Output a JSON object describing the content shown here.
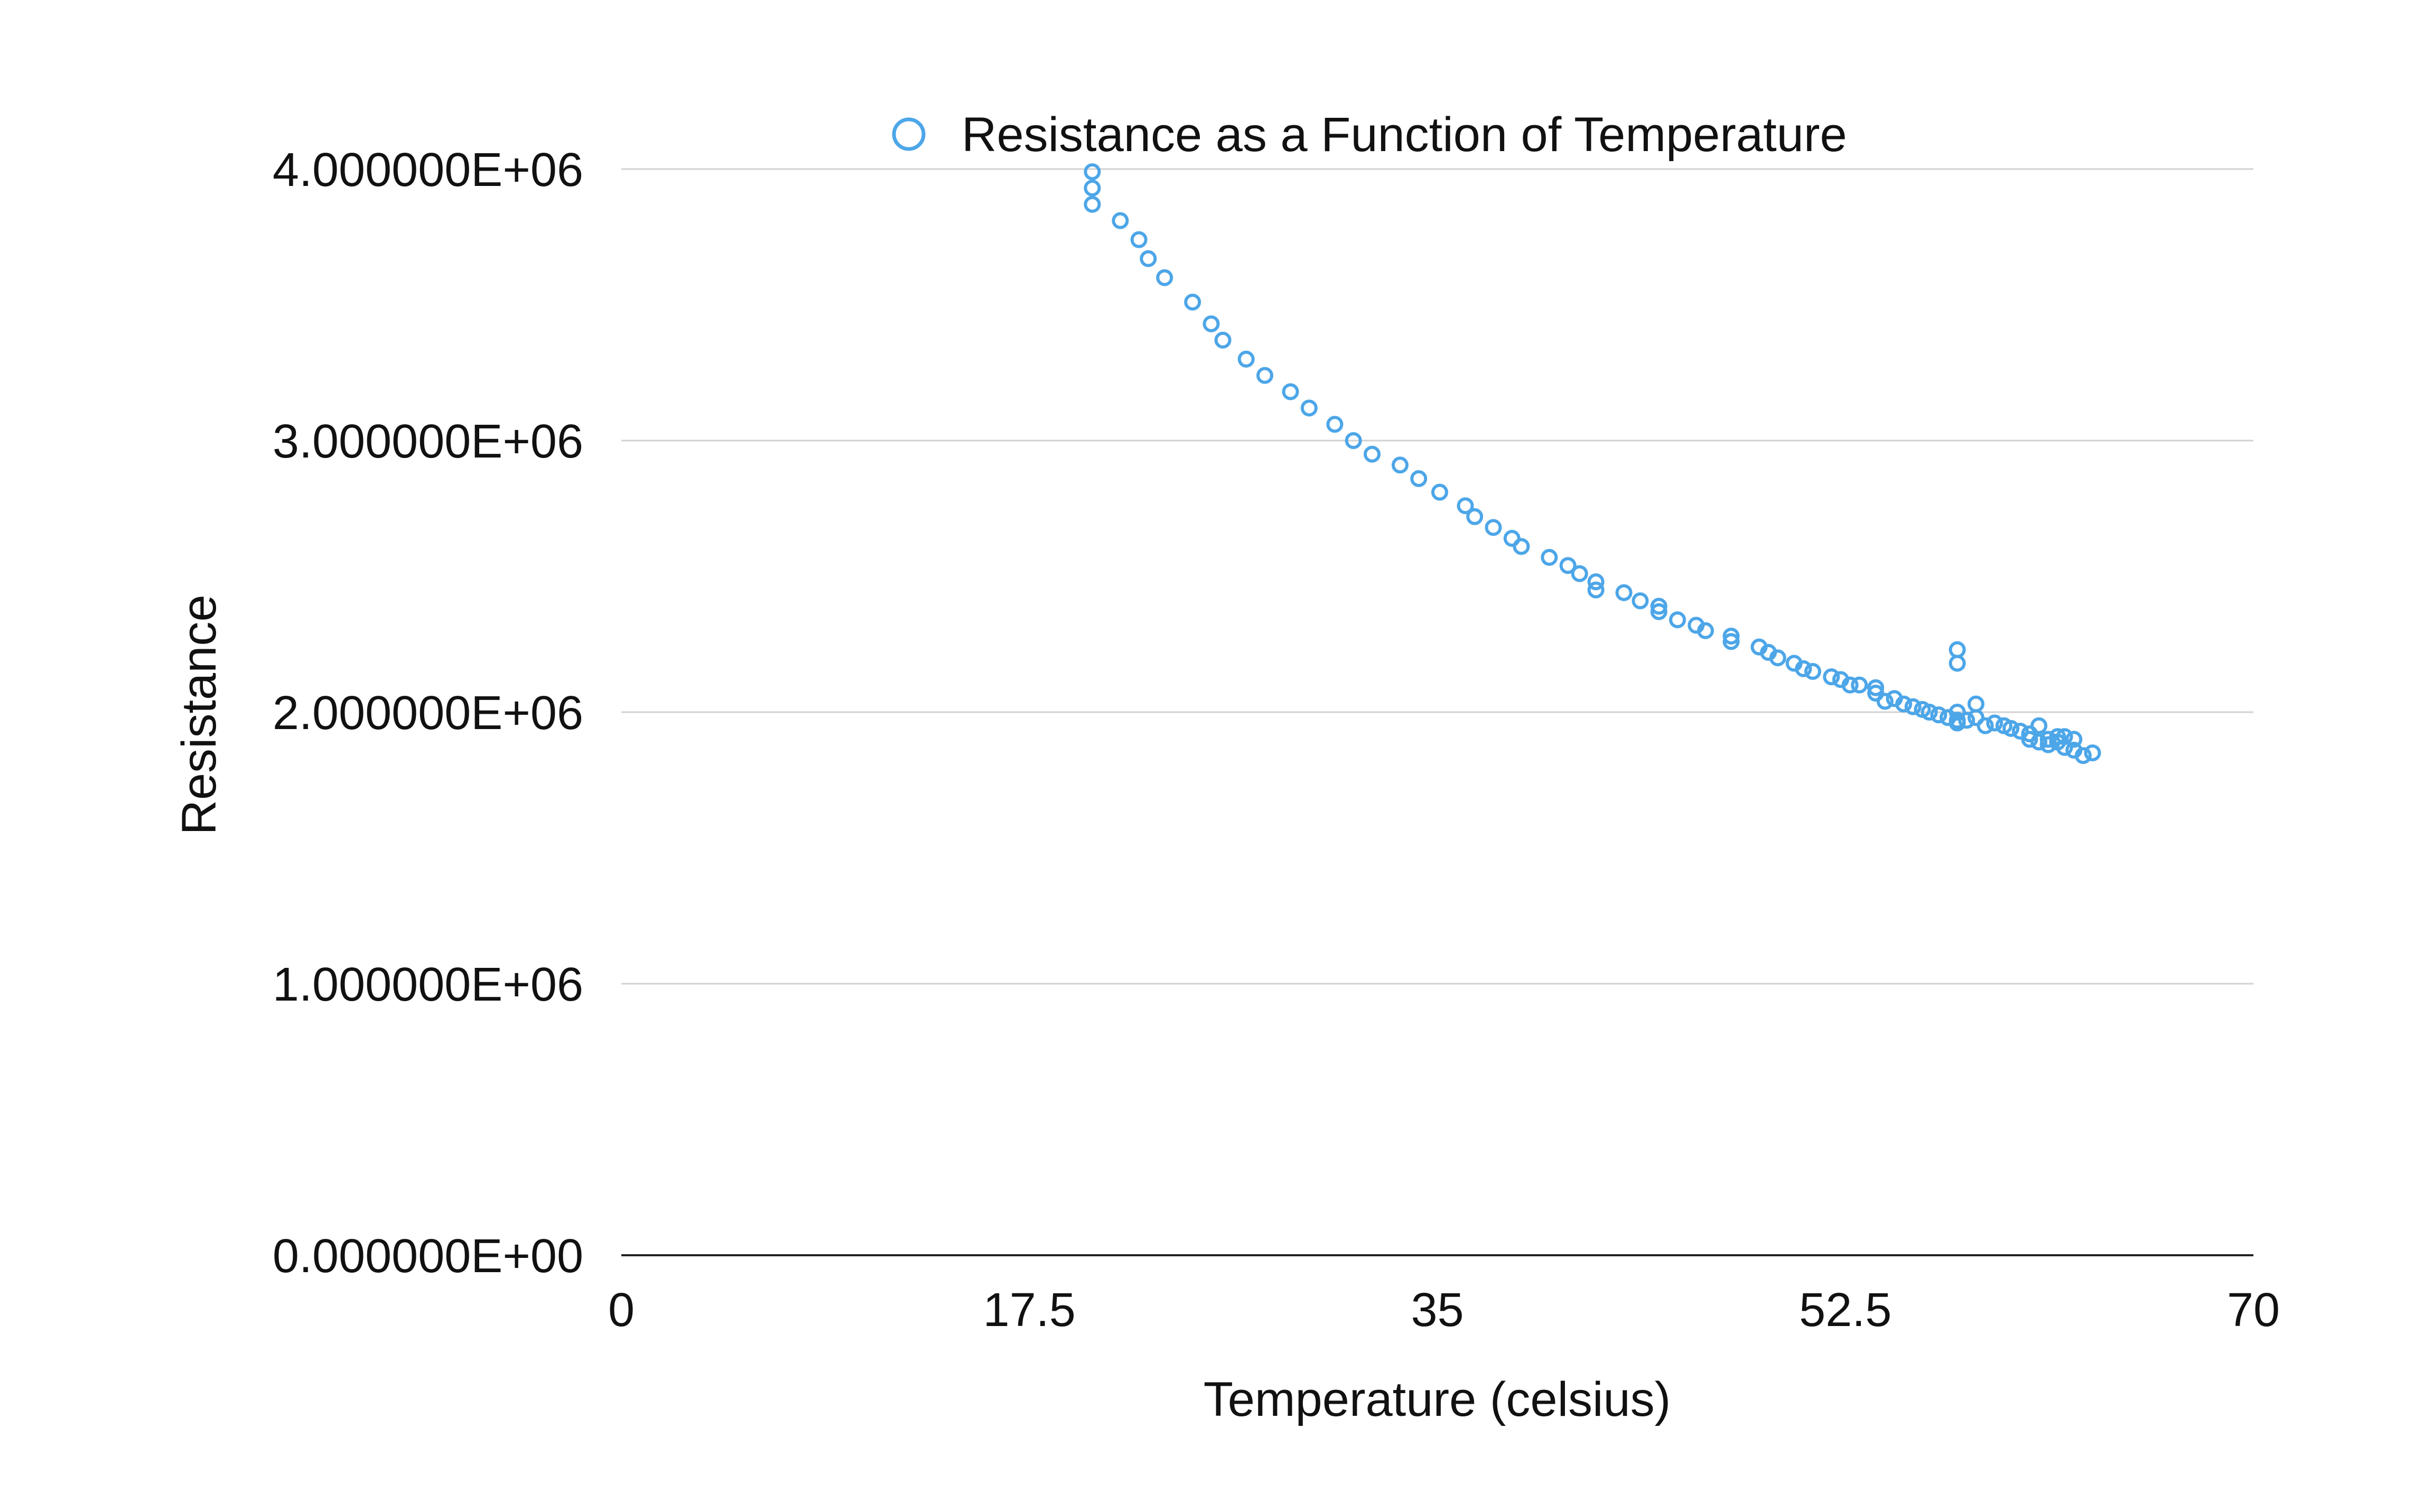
{
  "chart_data": {
    "type": "scatter",
    "title": "",
    "xlabel": "Temperature (celsius)",
    "ylabel": "Resistance",
    "xlim": [
      0,
      70
    ],
    "ylim": [
      0,
      4000000
    ],
    "x_ticks": [
      0,
      17.5,
      35,
      52.5,
      70
    ],
    "x_tick_labels": [
      "0",
      "17.5",
      "35",
      "52.5",
      "70"
    ],
    "y_ticks": [
      0,
      1000000,
      2000000,
      3000000,
      4000000
    ],
    "y_tick_labels": [
      "0.000000E+00",
      "1.000000E+06",
      "2.000000E+06",
      "3.000000E+06",
      "4.000000E+06"
    ],
    "grid": "horizontal",
    "legend_placement": "top",
    "marker": "hollow-circle",
    "series": [
      {
        "name": "Resistance as a Function of Temperature",
        "color": "#4da6e8",
        "points": [
          [
            20.2,
            3990000
          ],
          [
            20.2,
            3930000
          ],
          [
            20.2,
            3870000
          ],
          [
            21.4,
            3810000
          ],
          [
            22.2,
            3740000
          ],
          [
            22.6,
            3670000
          ],
          [
            23.3,
            3600000
          ],
          [
            24.5,
            3510000
          ],
          [
            25.3,
            3430000
          ],
          [
            25.8,
            3370000
          ],
          [
            26.8,
            3300000
          ],
          [
            27.6,
            3240000
          ],
          [
            28.7,
            3180000
          ],
          [
            29.5,
            3120000
          ],
          [
            30.6,
            3060000
          ],
          [
            31.4,
            3000000
          ],
          [
            32.2,
            2950000
          ],
          [
            33.4,
            2910000
          ],
          [
            34.2,
            2860000
          ],
          [
            35.1,
            2810000
          ],
          [
            36.2,
            2760000
          ],
          [
            36.6,
            2720000
          ],
          [
            37.4,
            2680000
          ],
          [
            38.2,
            2640000
          ],
          [
            38.6,
            2610000
          ],
          [
            39.8,
            2570000
          ],
          [
            40.6,
            2540000
          ],
          [
            41.1,
            2510000
          ],
          [
            41.8,
            2480000
          ],
          [
            41.8,
            2450000
          ],
          [
            43.0,
            2440000
          ],
          [
            43.7,
            2410000
          ],
          [
            44.5,
            2390000
          ],
          [
            44.5,
            2370000
          ],
          [
            45.3,
            2340000
          ],
          [
            46.1,
            2320000
          ],
          [
            46.5,
            2300000
          ],
          [
            47.6,
            2280000
          ],
          [
            47.6,
            2260000
          ],
          [
            48.8,
            2240000
          ],
          [
            49.2,
            2220000
          ],
          [
            49.6,
            2200000
          ],
          [
            50.3,
            2180000
          ],
          [
            50.7,
            2160000
          ],
          [
            51.1,
            2150000
          ],
          [
            51.9,
            2130000
          ],
          [
            52.3,
            2120000
          ],
          [
            52.7,
            2100000
          ],
          [
            53.1,
            2100000
          ],
          [
            53.8,
            2090000
          ],
          [
            53.8,
            2070000
          ],
          [
            54.2,
            2040000
          ],
          [
            54.6,
            2050000
          ],
          [
            55.0,
            2030000
          ],
          [
            55.4,
            2020000
          ],
          [
            55.8,
            2010000
          ],
          [
            56.1,
            2000000
          ],
          [
            56.5,
            1990000
          ],
          [
            56.9,
            1980000
          ],
          [
            57.3,
            1970000
          ],
          [
            57.7,
            1970000
          ],
          [
            57.3,
            2000000
          ],
          [
            57.3,
            1960000
          ],
          [
            57.3,
            2230000
          ],
          [
            57.3,
            2180000
          ],
          [
            58.1,
            2030000
          ],
          [
            58.1,
            1980000
          ],
          [
            58.5,
            1950000
          ],
          [
            58.9,
            1960000
          ],
          [
            59.3,
            1950000
          ],
          [
            59.6,
            1940000
          ],
          [
            60.0,
            1930000
          ],
          [
            60.4,
            1920000
          ],
          [
            60.4,
            1900000
          ],
          [
            60.8,
            1890000
          ],
          [
            60.8,
            1950000
          ],
          [
            61.2,
            1900000
          ],
          [
            61.2,
            1880000
          ],
          [
            61.6,
            1910000
          ],
          [
            61.6,
            1890000
          ],
          [
            61.9,
            1910000
          ],
          [
            61.9,
            1870000
          ],
          [
            62.3,
            1900000
          ],
          [
            62.3,
            1860000
          ],
          [
            62.7,
            1840000
          ],
          [
            63.1,
            1850000
          ]
        ]
      }
    ]
  }
}
